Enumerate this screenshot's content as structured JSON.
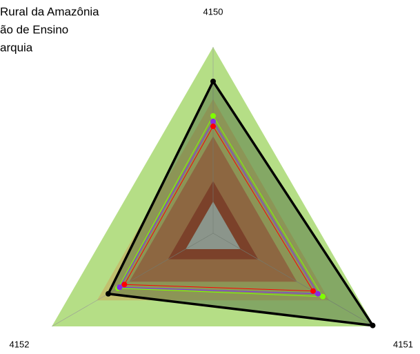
{
  "chart_data": {
    "type": "radar",
    "legend_text": [
      "Rural da Amazônia",
      "ão de Ensino",
      "arquia"
    ],
    "categories": [
      "4150",
      "4151",
      "4152"
    ],
    "rlim": [
      0,
      1
    ],
    "bands": [
      {
        "color": "#b5de86",
        "value": 1.0
      },
      {
        "color": "#c2c06f",
        "value": 0.72
      },
      {
        "color": "#c47a4f",
        "value": 0.52
      },
      {
        "color": "#a8402c",
        "value": 0.28
      },
      {
        "color": "#c0c0c0",
        "value": 0.17
      }
    ],
    "series": [
      {
        "color": "#000000",
        "values": [
          0.815,
          0.99,
          0.65
        ]
      },
      {
        "color": "#7fff00",
        "values": [
          0.63,
          0.68,
          0.59
        ]
      },
      {
        "color": "#1e90ff",
        "values": [
          0.6,
          0.65,
          0.58
        ]
      },
      {
        "color": "#8a2be2",
        "values": [
          0.6,
          0.65,
          0.58
        ]
      },
      {
        "color": "#ff0000",
        "values": [
          0.574,
          0.62,
          0.55
        ]
      }
    ]
  }
}
